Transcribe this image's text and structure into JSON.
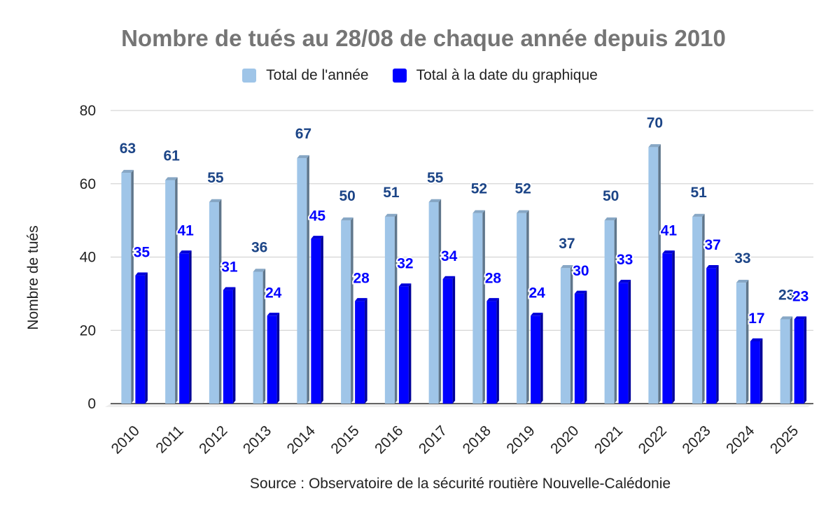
{
  "chart_data": {
    "type": "bar",
    "title": "Nombre de tués au 28/08 de chaque année depuis 2010",
    "xlabel": "",
    "ylabel": "Nombre de tués",
    "ylim": [
      0,
      80
    ],
    "yticks": [
      0,
      20,
      40,
      60,
      80
    ],
    "grid": true,
    "legend_position": "top",
    "categories": [
      "2010",
      "2011",
      "2012",
      "2013",
      "2014",
      "2015",
      "2016",
      "2017",
      "2018",
      "2019",
      "2020",
      "2021",
      "2022",
      "2023",
      "2024",
      "2025"
    ],
    "series": [
      {
        "name": "Total de l'année",
        "color": "#9fc5e8",
        "label_color": "#1c4587",
        "values": [
          63,
          61,
          55,
          36,
          67,
          50,
          51,
          55,
          52,
          52,
          37,
          50,
          70,
          51,
          33,
          23
        ]
      },
      {
        "name": "Total à la date du graphique",
        "color": "#0000ff",
        "label_color": "#0000ff",
        "values": [
          35,
          41,
          31,
          24,
          45,
          28,
          32,
          34,
          28,
          24,
          30,
          33,
          41,
          37,
          17,
          23
        ]
      }
    ],
    "source": "Source : Observatoire de la sécurité routière Nouvelle-Calédonie"
  }
}
